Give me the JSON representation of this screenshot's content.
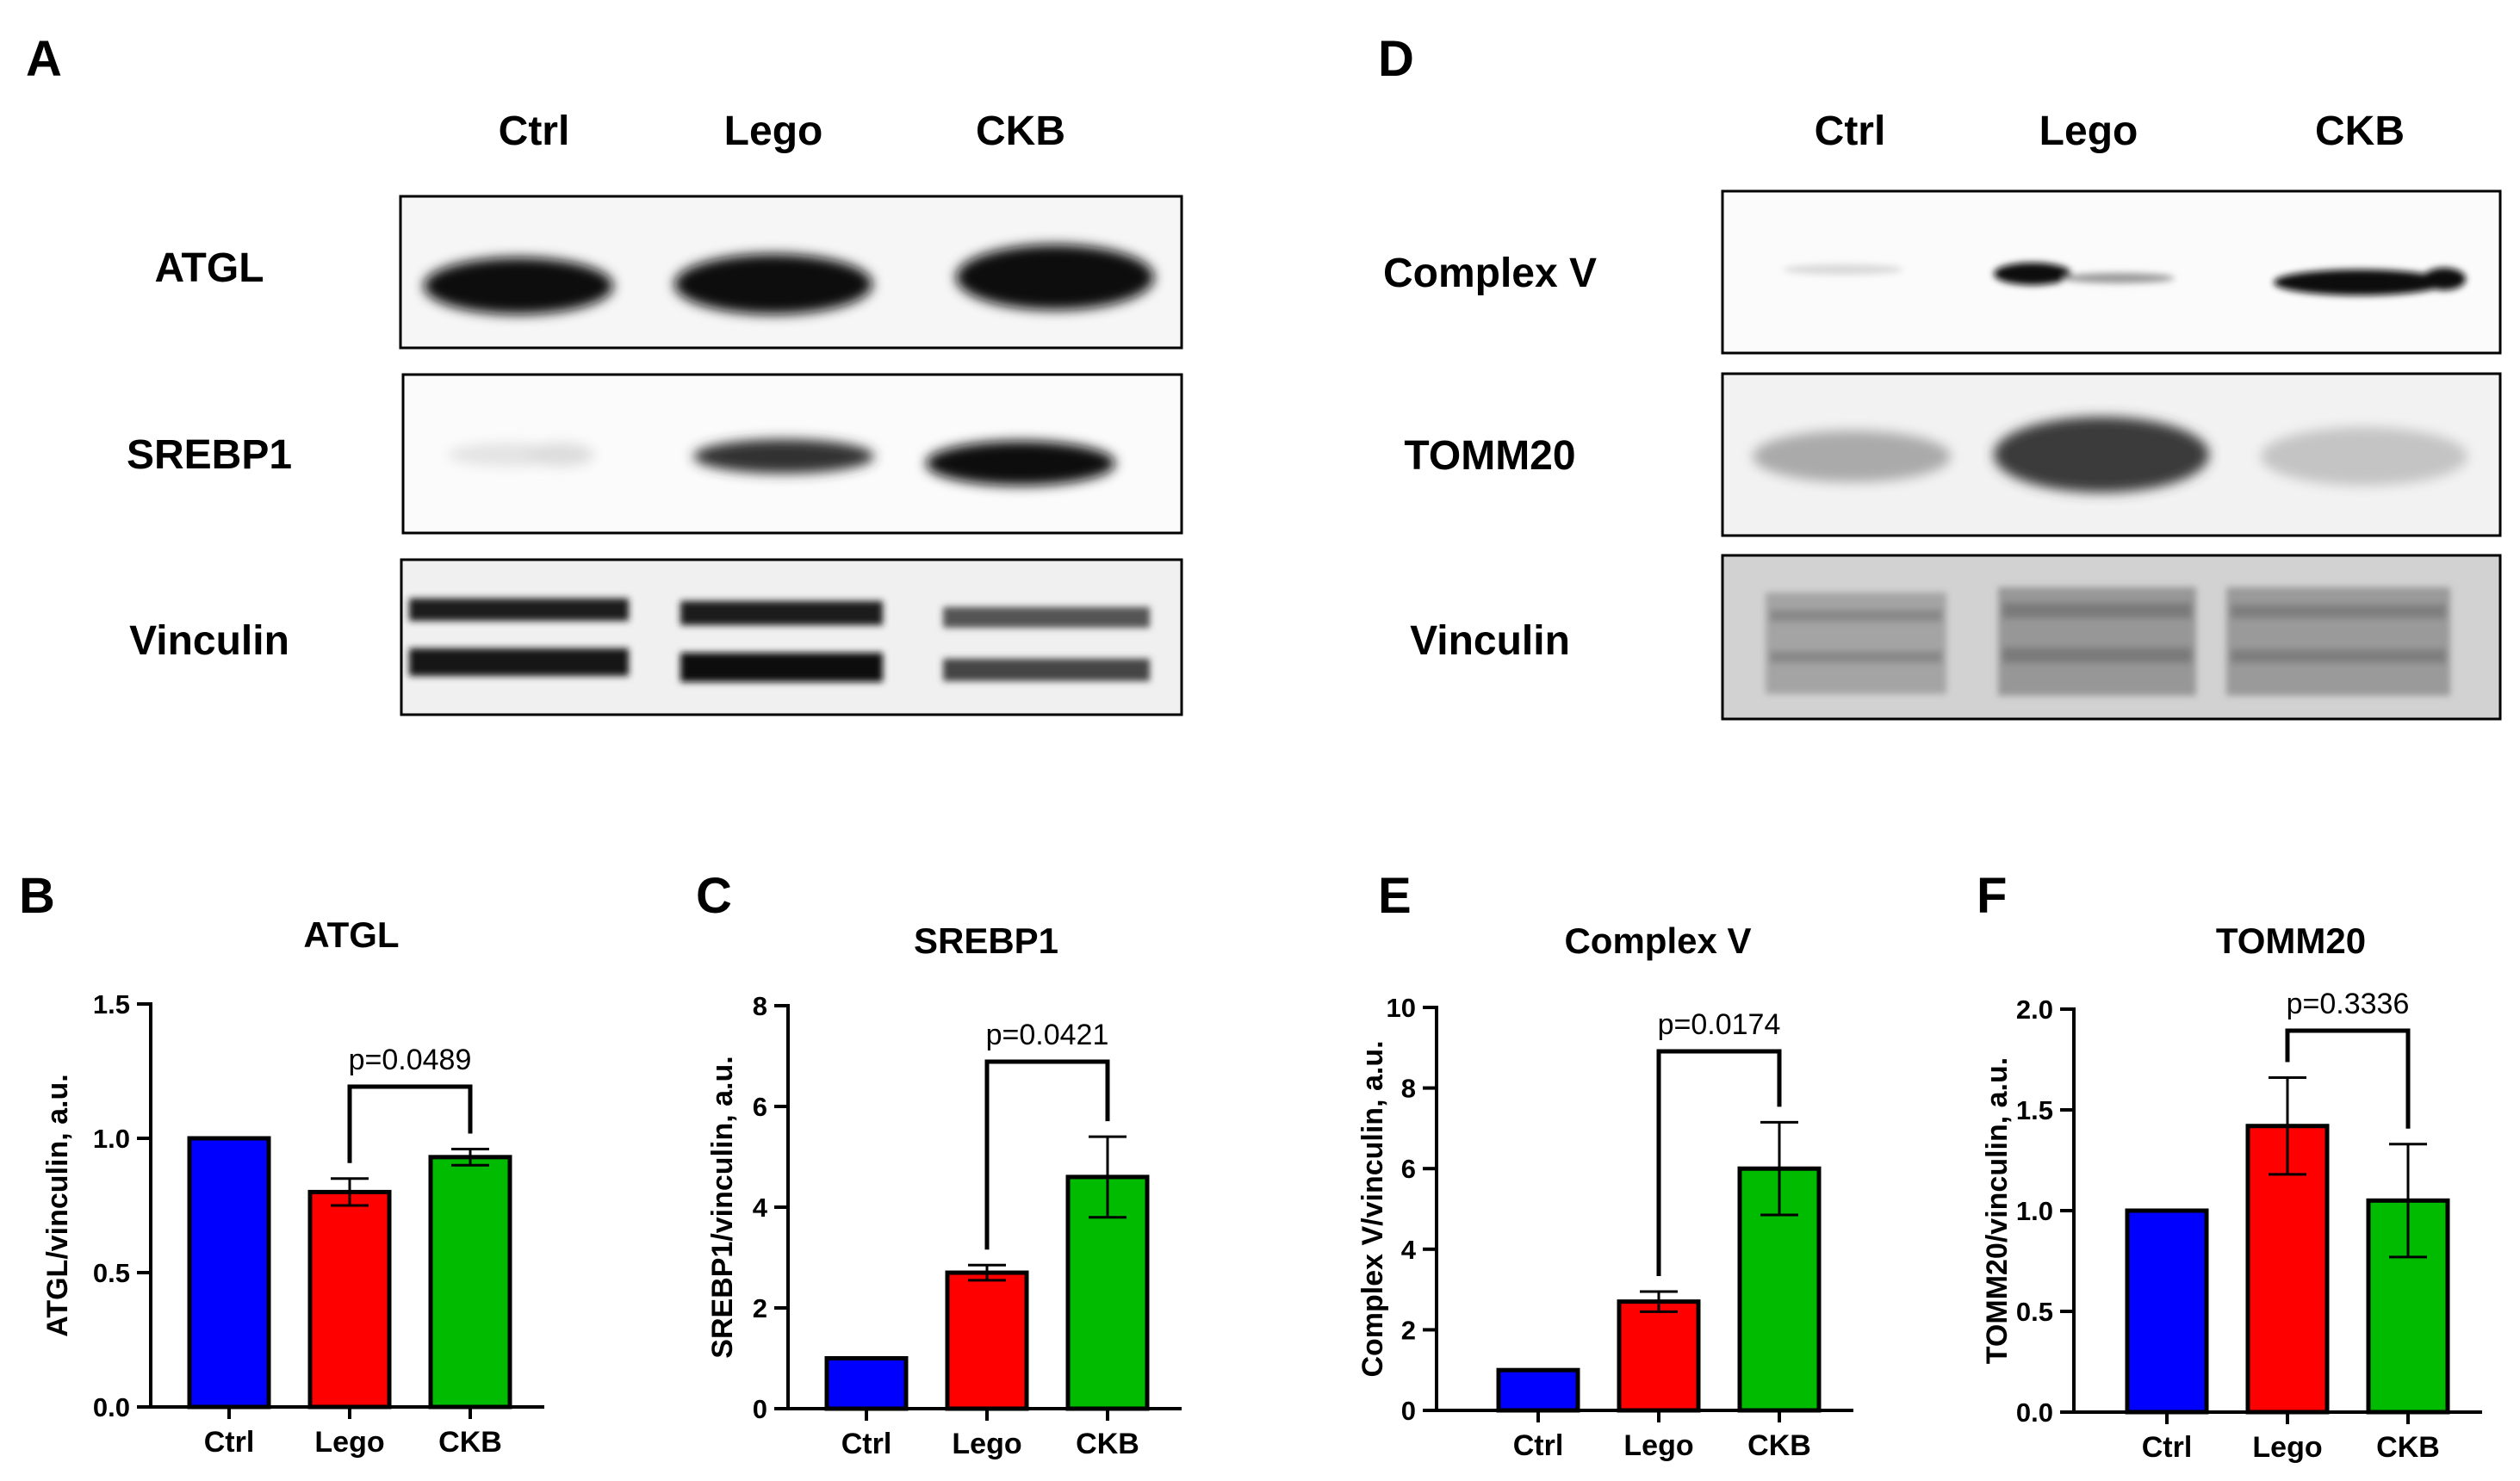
{
  "figure": {
    "panel_a": {
      "letter": "A",
      "lanes": [
        "Ctrl",
        "Lego",
        "CKB"
      ],
      "rows": [
        "ATGL",
        "SREBP1",
        "Vinculin"
      ]
    },
    "panel_d": {
      "letter": "D",
      "lanes": [
        "Ctrl",
        "Lego",
        "CKB"
      ],
      "rows": [
        "Complex V",
        "TOMM20",
        "Vinculin"
      ]
    }
  },
  "colors": {
    "Ctrl": "#0000ff",
    "Lego": "#ff0000",
    "CKB": "#00bb00",
    "axis": "#000000"
  },
  "chart_data": [
    {
      "panel": "B",
      "type": "bar",
      "title": "ATGL",
      "ylabel": "ATGL/vinculin, a.u.",
      "xlabel": "",
      "categories": [
        "Ctrl",
        "Lego",
        "CKB"
      ],
      "values": [
        1.0,
        0.8,
        0.93
      ],
      "errors": [
        0,
        0.05,
        0.03
      ],
      "ylim": [
        0,
        1.5
      ],
      "yticks": [
        "0.0",
        "0.5",
        "1.0",
        "1.5"
      ],
      "comparison": {
        "from": "Lego",
        "to": "CKB",
        "label": "p=0.0489"
      }
    },
    {
      "panel": "C",
      "type": "bar",
      "title": "SREBP1",
      "ylabel": "SREBP1/vinculin, a.u.",
      "xlabel": "",
      "categories": [
        "Ctrl",
        "Lego",
        "CKB"
      ],
      "values": [
        1.0,
        2.7,
        4.6
      ],
      "errors": [
        0,
        0.15,
        0.8
      ],
      "ylim": [
        0,
        8
      ],
      "yticks": [
        "0",
        "2",
        "4",
        "6",
        "8"
      ],
      "comparison": {
        "from": "Lego",
        "to": "CKB",
        "label": "p=0.0421"
      }
    },
    {
      "panel": "E",
      "type": "bar",
      "title": "Complex V",
      "ylabel": "Complex V/vinculin, a.u.",
      "xlabel": "",
      "categories": [
        "Ctrl",
        "Lego",
        "CKB"
      ],
      "values": [
        1.0,
        2.7,
        6.0
      ],
      "errors": [
        0,
        0.25,
        1.15
      ],
      "ylim": [
        0,
        10
      ],
      "yticks": [
        "0",
        "2",
        "4",
        "6",
        "8",
        "10"
      ],
      "comparison": {
        "from": "Lego",
        "to": "CKB",
        "label": "p=0.0174"
      }
    },
    {
      "panel": "F",
      "type": "bar",
      "title": "TOMM20",
      "ylabel": "TOMM20/vinculin, a.u.",
      "xlabel": "",
      "categories": [
        "Ctrl",
        "Lego",
        "CKB"
      ],
      "values": [
        1.0,
        1.42,
        1.05
      ],
      "errors": [
        0,
        0.24,
        0.28
      ],
      "ylim": [
        0,
        2.0
      ],
      "yticks": [
        "0.0",
        "0.5",
        "1.0",
        "1.5",
        "2.0"
      ],
      "comparison": {
        "from": "Lego",
        "to": "CKB",
        "label": "p=0.3336"
      }
    }
  ]
}
